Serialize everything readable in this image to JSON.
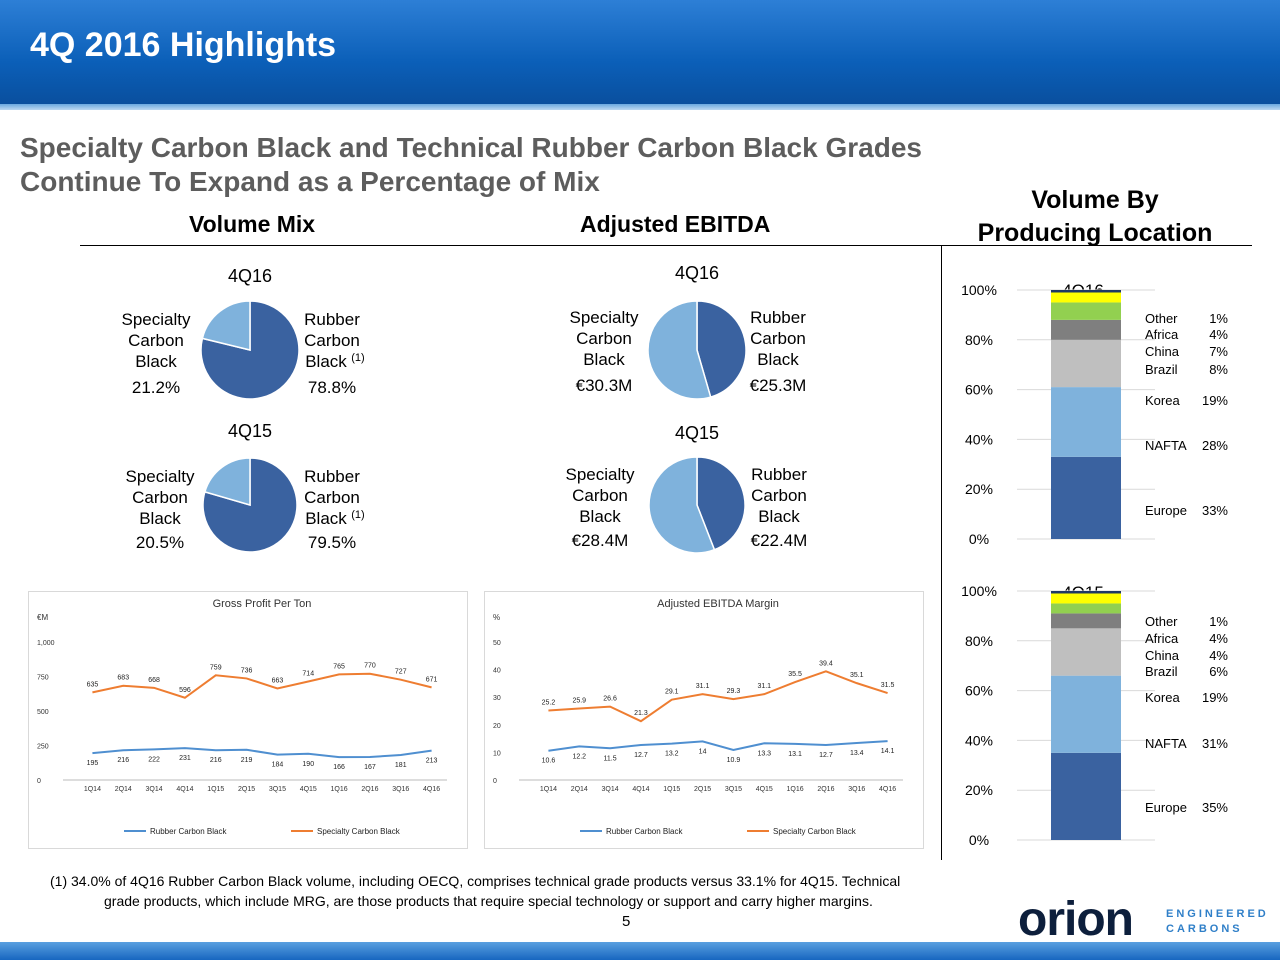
{
  "header": {
    "title": "4Q 2016 Highlights",
    "subtitle_line1": "Specialty Carbon Black and Technical Rubber Carbon Black Grades",
    "subtitle_line2": "Continue To Expand as a Percentage of Mix"
  },
  "colors": {
    "rubber": "#3a62a0",
    "specialty": "#7fb2dc",
    "orange": "#ee7d31",
    "blue_line": "#4f8fd0"
  },
  "section_titles": {
    "volume_mix": "Volume Mix",
    "adjusted_ebitda": "Adjusted EBITDA",
    "volume_by_line1": "Volume By",
    "volume_by_line2": "Producing Location"
  },
  "chart_data": [
    {
      "id": "volume_mix_4q16",
      "type": "pie",
      "title": "4Q16",
      "slices": [
        {
          "label": "Rubber Carbon Black",
          "label_lines": [
            "Rubber",
            "Carbon",
            "Black"
          ],
          "footnote": "(1)",
          "value": 78.8,
          "display": "78.8%"
        },
        {
          "label": "Specialty Carbon Black",
          "label_lines": [
            "Specialty",
            "Carbon",
            "Black"
          ],
          "value": 21.2,
          "display": "21.2%"
        }
      ]
    },
    {
      "id": "volume_mix_4q15",
      "type": "pie",
      "title": "4Q15",
      "slices": [
        {
          "label": "Rubber Carbon Black",
          "label_lines": [
            "Rubber",
            "Carbon",
            "Black"
          ],
          "footnote": "(1)",
          "value": 79.5,
          "display": "79.5%"
        },
        {
          "label": "Specialty Carbon Black",
          "label_lines": [
            "Specialty",
            "Carbon",
            "Black"
          ],
          "value": 20.5,
          "display": "20.5%"
        }
      ]
    },
    {
      "id": "ebitda_4q16",
      "type": "pie",
      "title": "4Q16",
      "slices": [
        {
          "label": "Rubber Carbon Black",
          "label_lines": [
            "Rubber",
            "Carbon",
            "Black"
          ],
          "value": 25.3,
          "display": "€25.3M"
        },
        {
          "label": "Specialty Carbon Black",
          "label_lines": [
            "Specialty",
            "Carbon",
            "Black"
          ],
          "value": 30.3,
          "display": "€30.3M"
        }
      ]
    },
    {
      "id": "ebitda_4q15",
      "type": "pie",
      "title": "4Q15",
      "slices": [
        {
          "label": "Rubber Carbon Black",
          "label_lines": [
            "Rubber",
            "Carbon",
            "Black"
          ],
          "value": 22.4,
          "display": "€22.4M"
        },
        {
          "label": "Specialty Carbon Black",
          "label_lines": [
            "Specialty",
            "Carbon",
            "Black"
          ],
          "value": 28.4,
          "display": "€28.4M"
        }
      ]
    },
    {
      "id": "gross_profit_per_ton",
      "type": "line",
      "title": "Gross Profit Per Ton",
      "ylabel": "€M",
      "categories": [
        "1Q14",
        "2Q14",
        "3Q14",
        "4Q14",
        "1Q15",
        "2Q15",
        "3Q15",
        "4Q15",
        "1Q16",
        "2Q16",
        "3Q16",
        "4Q16"
      ],
      "yticks": [
        0,
        250,
        500,
        750,
        "1,000"
      ],
      "ylim": [
        0,
        1000
      ],
      "series": [
        {
          "name": "Rubber Carbon Black",
          "values": [
            195,
            216,
            222,
            231,
            216,
            219,
            184,
            190,
            166,
            167,
            181,
            213
          ]
        },
        {
          "name": "Specialty Carbon Black",
          "values": [
            635,
            683,
            668,
            596,
            759,
            736,
            663,
            714,
            765,
            770,
            727,
            671
          ]
        }
      ]
    },
    {
      "id": "adjusted_ebitda_margin",
      "type": "line",
      "title": "Adjusted EBITDA Margin",
      "ylabel": "%",
      "categories": [
        "1Q14",
        "2Q14",
        "3Q14",
        "4Q14",
        "1Q15",
        "2Q15",
        "3Q15",
        "4Q15",
        "1Q16",
        "2Q16",
        "3Q16",
        "4Q16"
      ],
      "yticks": [
        0,
        10,
        20,
        30,
        40,
        50
      ],
      "ylim": [
        0,
        50
      ],
      "series": [
        {
          "name": "Rubber Carbon Black",
          "values": [
            10.6,
            12.2,
            11.5,
            12.7,
            13.2,
            14.0,
            10.9,
            13.3,
            13.1,
            12.7,
            13.4,
            14.1
          ]
        },
        {
          "name": "Specialty Carbon Black",
          "values": [
            25.2,
            25.9,
            26.6,
            21.3,
            29.1,
            31.1,
            29.3,
            31.1,
            35.5,
            39.4,
            35.1,
            31.5
          ]
        }
      ]
    },
    {
      "id": "volume_by_location_4q16",
      "type": "bar",
      "stacked": true,
      "title": "4Q16",
      "yticks": [
        "0%",
        "20%",
        "40%",
        "60%",
        "80%",
        "100%"
      ],
      "ylim": [
        0,
        100
      ],
      "segments": [
        {
          "name": "Europe",
          "value": 33,
          "display": "33%",
          "color": "#3a62a0"
        },
        {
          "name": "NAFTA",
          "value": 28,
          "display": "28%",
          "color": "#7fb2dc"
        },
        {
          "name": "Korea",
          "value": 19,
          "display": "19%",
          "color": "#bfbfbf"
        },
        {
          "name": "Brazil",
          "value": 8,
          "display": "8%",
          "color": "#7f7f7f"
        },
        {
          "name": "China",
          "value": 7,
          "display": "7%",
          "color": "#92d050"
        },
        {
          "name": "Africa",
          "value": 4,
          "display": "4%",
          "color": "#ffff00"
        },
        {
          "name": "Other",
          "value": 1,
          "display": "1%",
          "color": "#1f3864"
        }
      ]
    },
    {
      "id": "volume_by_location_4q15",
      "type": "bar",
      "stacked": true,
      "title": "4Q15",
      "yticks": [
        "0%",
        "20%",
        "40%",
        "60%",
        "80%",
        "100%"
      ],
      "ylim": [
        0,
        100
      ],
      "segments": [
        {
          "name": "Europe",
          "value": 35,
          "display": "35%",
          "color": "#3a62a0"
        },
        {
          "name": "NAFTA",
          "value": 31,
          "display": "31%",
          "color": "#7fb2dc"
        },
        {
          "name": "Korea",
          "value": 19,
          "display": "19%",
          "color": "#bfbfbf"
        },
        {
          "name": "Brazil",
          "value": 6,
          "display": "6%",
          "color": "#7f7f7f"
        },
        {
          "name": "China",
          "value": 4,
          "display": "4%",
          "color": "#92d050"
        },
        {
          "name": "Africa",
          "value": 4,
          "display": "4%",
          "color": "#ffff00"
        },
        {
          "name": "Other",
          "value": 1,
          "display": "1%",
          "color": "#1f3864"
        }
      ]
    }
  ],
  "footnote": {
    "line1": "(1) 34.0% of 4Q16 Rubber Carbon Black volume, including OECQ, comprises technical grade products versus 33.1% for 4Q15.  Technical",
    "line2": "grade products, which include MRG, are those products that require special technology or support and carry higher margins."
  },
  "page_number": "5",
  "logo": {
    "wordmark": "orion",
    "line1": "ENGINEERED",
    "line2": "CARBONS"
  }
}
